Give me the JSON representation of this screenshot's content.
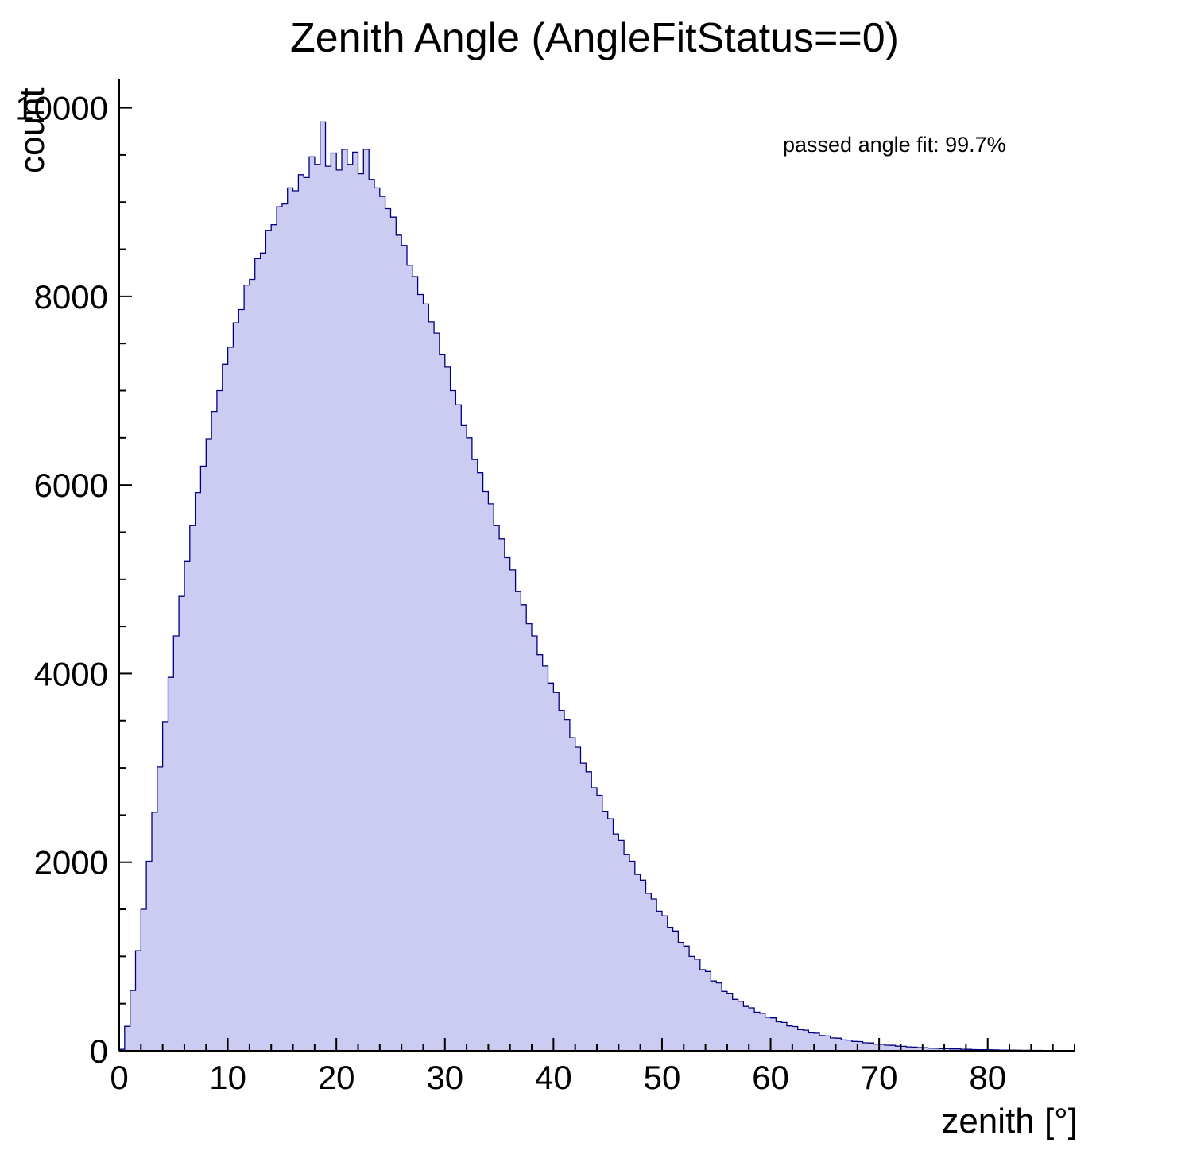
{
  "chart_data": {
    "type": "bar",
    "title": "Zenith Angle (AngleFitStatus==0)",
    "xlabel": "zenith [°]",
    "ylabel": "count",
    "annotation": "passed angle fit: 99.7%",
    "xlim": [
      0,
      88
    ],
    "ylim": [
      0,
      10300
    ],
    "x_ticks": [
      0,
      10,
      20,
      30,
      40,
      50,
      60,
      70,
      80
    ],
    "y_ticks": [
      0,
      2000,
      4000,
      6000,
      8000,
      10000
    ],
    "x_minor_step": 2,
    "y_minor_step": 500,
    "bin_start": 0,
    "bin_width": 0.5,
    "fill_color": "#ccccf2",
    "line_color": "#000080",
    "axis_color": "#000000",
    "bins": [
      15,
      260,
      640,
      1060,
      1500,
      2010,
      2530,
      3010,
      3490,
      3960,
      4400,
      4820,
      5190,
      5570,
      5920,
      6200,
      6490,
      6780,
      7000,
      7280,
      7460,
      7720,
      7860,
      8120,
      8180,
      8400,
      8460,
      8700,
      8760,
      8950,
      8980,
      9150,
      9120,
      9290,
      9260,
      9480,
      9400,
      9850,
      9380,
      9520,
      9340,
      9560,
      9400,
      9530,
      9300,
      9560,
      9240,
      9150,
      9060,
      8930,
      8840,
      8650,
      8540,
      8330,
      8210,
      8020,
      7920,
      7730,
      7610,
      7380,
      7250,
      7000,
      6850,
      6630,
      6500,
      6270,
      6130,
      5930,
      5800,
      5570,
      5430,
      5230,
      5100,
      4870,
      4730,
      4530,
      4400,
      4200,
      4080,
      3900,
      3800,
      3610,
      3510,
      3320,
      3220,
      3050,
      2960,
      2790,
      2710,
      2540,
      2460,
      2300,
      2230,
      2080,
      2010,
      1870,
      1810,
      1670,
      1610,
      1480,
      1430,
      1310,
      1270,
      1150,
      1110,
      1000,
      970,
      860,
      840,
      740,
      720,
      630,
      610,
      545,
      525,
      470,
      455,
      410,
      398,
      356,
      348,
      308,
      300,
      264,
      257,
      224,
      218,
      190,
      186,
      161,
      157,
      136,
      133,
      115,
      113,
      99,
      97,
      84,
      83,
      71,
      69,
      59,
      57,
      49,
      47,
      41,
      39,
      34,
      33,
      28,
      27,
      23,
      23,
      19,
      19,
      16,
      15,
      13,
      12,
      11,
      10,
      9,
      8,
      7,
      7,
      6,
      5,
      5,
      4,
      4,
      3,
      3,
      2,
      2,
      2,
      1
    ]
  }
}
